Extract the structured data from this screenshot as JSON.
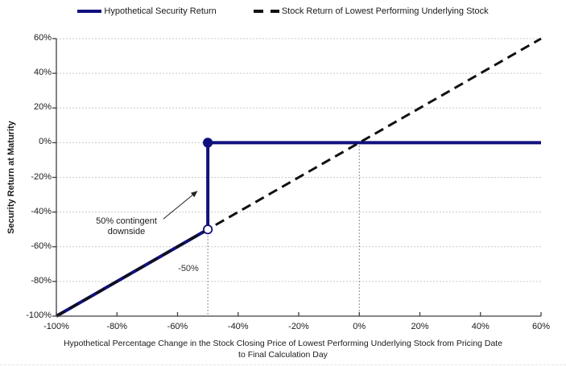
{
  "legend": {
    "items": [
      {
        "label": "Hypothetical Security Return",
        "color": "#10107d",
        "style": "solid"
      },
      {
        "label": "Stock Return of Lowest Performing Underlying Stock",
        "color": "#111111",
        "style": "dashed"
      }
    ]
  },
  "axes": {
    "y_title": "Security Return at Maturity",
    "x_title_lines": [
      "Hypothetical Percentage Change in the Stock Closing Price of Lowest Performing Underlying Stock from Pricing Date",
      "to Final Calculation Day"
    ]
  },
  "colors": {
    "navy": "#10107d",
    "black": "#111111",
    "grid": "#c9c9c9",
    "axis": "#3f3f3f",
    "refline": "#666666",
    "arrow": "#222222"
  },
  "chart_data": {
    "type": "line",
    "title": "",
    "xlabel": "Hypothetical Percentage Change in the Stock Closing Price of Lowest Performing Underlying Stock from Pricing Date to Final Calculation Day",
    "ylabel": "Security Return at Maturity",
    "xlim": [
      -100,
      60
    ],
    "ylim": [
      -100,
      60
    ],
    "grid": "horizontal, light dashed",
    "legend_position": "top-center",
    "x_ticks": [
      {
        "v": -100,
        "label": "-100%"
      },
      {
        "v": -80,
        "label": "-80%"
      },
      {
        "v": -60,
        "label": "-60%"
      },
      {
        "v": -40,
        "label": "-40%"
      },
      {
        "v": -20,
        "label": "-20%"
      },
      {
        "v": 0,
        "label": "0%"
      },
      {
        "v": 20,
        "label": "20%"
      },
      {
        "v": 40,
        "label": "40%"
      },
      {
        "v": 60,
        "label": "60%"
      }
    ],
    "y_ticks": [
      {
        "v": 60,
        "label": "60%"
      },
      {
        "v": 40,
        "label": "40%"
      },
      {
        "v": 20,
        "label": "20%"
      },
      {
        "v": 0,
        "label": "0%"
      },
      {
        "v": -20,
        "label": "-20%"
      },
      {
        "v": -40,
        "label": "-40%"
      },
      {
        "v": -60,
        "label": "-60%"
      },
      {
        "v": -80,
        "label": "-80%"
      },
      {
        "v": -100,
        "label": "-100%"
      }
    ],
    "series": [
      {
        "name": "Hypothetical Security Return",
        "color": "#10107d",
        "width": 4,
        "dash": null,
        "points": [
          [
            -100,
            -100
          ],
          [
            -50,
            -50
          ],
          [
            -50,
            0
          ],
          [
            60,
            0
          ]
        ]
      },
      {
        "name": "Stock Return of Lowest Performing Underlying Stock",
        "color": "#111111",
        "width": 3,
        "dash": "12 7",
        "points": [
          [
            -100,
            -100
          ],
          [
            60,
            60
          ]
        ]
      }
    ],
    "reference_lines": [
      {
        "x": -50,
        "y_from": -50,
        "y_to": -100
      },
      {
        "x": 0,
        "y_from": 0,
        "y_to": -100
      }
    ],
    "markers": [
      {
        "x": -50,
        "y": -50,
        "style": "open",
        "color": "#10107d"
      },
      {
        "x": -50,
        "y": 0,
        "style": "filled",
        "color": "#10107d"
      }
    ],
    "annotations": [
      {
        "lines": [
          "50% contingent",
          "downside"
        ],
        "arrow_from": [
          -64.7,
          -44
        ],
        "arrow_to": [
          -53.5,
          -28
        ]
      },
      {
        "lines": [
          "-50%"
        ],
        "x": -56.5,
        "y": -73
      }
    ]
  }
}
